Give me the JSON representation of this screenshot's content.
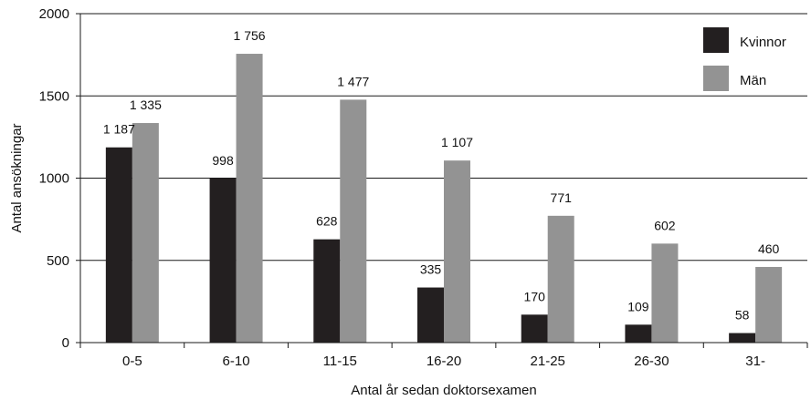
{
  "chart_data": {
    "type": "bar",
    "title": "",
    "xlabel": "Antal år sedan doktorsexamen",
    "ylabel": "Antal ansökningar",
    "categories": [
      "0-5",
      "6-10",
      "11-15",
      "16-20",
      "21-25",
      "26-30",
      "31-"
    ],
    "series": [
      {
        "name": "Kvinnor",
        "color": "#231f20",
        "values": [
          1187,
          998,
          628,
          335,
          170,
          109,
          58
        ],
        "labels": [
          "1 187",
          "998",
          "628",
          "335",
          "170",
          "109",
          "58"
        ]
      },
      {
        "name": "Män",
        "color": "#939393",
        "values": [
          1335,
          1756,
          1477,
          1107,
          771,
          602,
          460
        ],
        "labels": [
          "1 335",
          "1 756",
          "1 477",
          "1 107",
          "771",
          "602",
          "460"
        ]
      }
    ],
    "ylim": [
      0,
      2000
    ],
    "yticks": [
      0,
      500,
      1000,
      1500,
      2000
    ],
    "ytick_labels": [
      "0",
      "500",
      "1000",
      "1500",
      "2000"
    ],
    "grid": true,
    "legend_position": "top-right"
  }
}
